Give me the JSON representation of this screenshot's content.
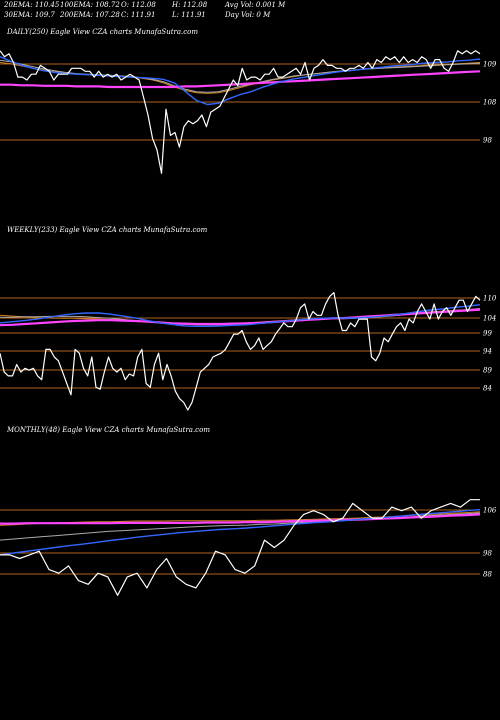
{
  "header": {
    "ema20": "20EMA: 110.45",
    "ema100": "100EMA: 108.72",
    "open": "O: 112.08",
    "high": "H: 112.08",
    "avg_vol": "Avg Vol: 0.001 M",
    "ema30": "30EMA: 109.7",
    "ema200": "200EMA: 107.28",
    "close": "C: 111.91",
    "low": "L: 111.91",
    "day_vol": "Day Vol: 0  M"
  },
  "colors": {
    "background": "#000000",
    "price": "#ffffff",
    "ema_blue": "#3366ff",
    "ema_pink": "#ff44ff",
    "ema_orange": "#d08020",
    "ema_gray": "#aaaaaa",
    "gridline": "#b06420"
  },
  "chart_data": [
    {
      "type": "line",
      "title": "DAILY(250) Eagle  View  CZA charts MunafaSutra.com",
      "ticks": [
        "109",
        "108",
        "98"
      ],
      "price": [
        113,
        112,
        112.5,
        111,
        108.5,
        108.5,
        108,
        109,
        109,
        110.5,
        110,
        109.5,
        108,
        109,
        109,
        109,
        110,
        110,
        110,
        109.5,
        109.5,
        108.5,
        109.5,
        108.5,
        109,
        108.5,
        109,
        108,
        108.5,
        109,
        108.5,
        108,
        105,
        102,
        98,
        96,
        92,
        103,
        98.5,
        99,
        96.5,
        100,
        101,
        100.5,
        101,
        102,
        100,
        102.5,
        103,
        103.5,
        105,
        106.5,
        108,
        107,
        110,
        108,
        108.5,
        108.5,
        108,
        109,
        109,
        110,
        108.5,
        108.5,
        109,
        109.5,
        110,
        109,
        111,
        108,
        110,
        110.5,
        111.5,
        110.5,
        110.5,
        110,
        110,
        109.5,
        110,
        110,
        110.5,
        110,
        111,
        110,
        111.5,
        111,
        112,
        111.5,
        112,
        111,
        112,
        111,
        111.5,
        111,
        112,
        111.5,
        110,
        111.5,
        111.5,
        110,
        109.5,
        111,
        113,
        112.5,
        113,
        112.5,
        113,
        112.5
      ],
      "ema_blue": [
        112,
        111.2,
        110.5,
        110,
        109.6,
        109.3,
        109.1,
        109,
        108.9,
        108.8,
        108.7,
        108.6,
        108.5,
        108.4,
        108.3,
        108.1,
        107.5,
        106,
        104.5,
        103.8,
        104,
        104.8,
        105.5,
        106,
        106.7,
        107.3,
        107.8,
        108.2,
        108.5,
        108.8,
        109.1,
        109.4,
        109.6,
        109.8,
        110,
        110.2,
        110.4,
        110.5,
        110.7,
        110.9,
        111,
        111.1,
        111.3,
        111.4,
        111.6
      ],
      "ema_orange": [
        111,
        110.8,
        110.4,
        110,
        109.7,
        109.4,
        109.2,
        109,
        108.9,
        108.8,
        108.7,
        108.6,
        108.5,
        108.3,
        108,
        107.5,
        106.8,
        106.2,
        105.8,
        105.7,
        105.8,
        106.2,
        106.7,
        107.2,
        107.6,
        108,
        108.3,
        108.6,
        108.9,
        109.1,
        109.3,
        109.5,
        109.7,
        109.8,
        110,
        110.1,
        110.2,
        110.3,
        110.4,
        110.5,
        110.6,
        110.7,
        110.8,
        110.9,
        111
      ],
      "ema_gray": [
        111.4,
        111.1,
        110.7,
        110.3,
        109.9,
        109.6,
        109.3,
        109.1,
        109,
        108.9,
        108.8,
        108.7,
        108.6,
        108.4,
        108.1,
        107.7,
        107,
        106.4,
        106,
        105.9,
        106,
        106.4,
        106.9,
        107.3,
        107.7,
        108.1,
        108.4,
        108.7,
        108.9,
        109.1,
        109.3,
        109.5,
        109.6,
        109.8,
        109.9,
        110,
        110.1,
        110.2,
        110.3,
        110.4,
        110.5,
        110.6,
        110.7,
        110.8,
        110.9
      ],
      "ema_pink": [
        107.2,
        107.2,
        107.1,
        107.1,
        107,
        107,
        107,
        106.9,
        106.9,
        106.9,
        106.8,
        106.8,
        106.8,
        106.8,
        106.8,
        106.8,
        106.8,
        106.9,
        106.9,
        107,
        107.1,
        107.2,
        107.3,
        107.4,
        107.5,
        107.6,
        107.7,
        107.8,
        107.9,
        108,
        108.1,
        108.2,
        108.3,
        108.4,
        108.5,
        108.6,
        108.7,
        108.8,
        108.9,
        109,
        109.1,
        109.2,
        109.3,
        109.4,
        109.5
      ]
    },
    {
      "type": "line",
      "title": "WEEKLY(233) Eagle  View  CZA charts MunafaSutra.com",
      "ticks": [
        "110",
        "104",
        "99",
        "94",
        "89",
        "84"
      ],
      "price": [
        95,
        90,
        89,
        89,
        92,
        90,
        91,
        90.5,
        91,
        89,
        88,
        96,
        96,
        94,
        93,
        90,
        87,
        84,
        96,
        95,
        91,
        89,
        94,
        86,
        85.5,
        90,
        94,
        91,
        90,
        91,
        88,
        89.5,
        89,
        94,
        96,
        87,
        86,
        92,
        95,
        88,
        92,
        89,
        85,
        83,
        82,
        80,
        82,
        86,
        90,
        91,
        92,
        94,
        94.5,
        95,
        96,
        98,
        100,
        100,
        101,
        98,
        96,
        97,
        99,
        96,
        97,
        98,
        100,
        101.5,
        103,
        102,
        102,
        104,
        107,
        108,
        104,
        106,
        105,
        105,
        108,
        110,
        111,
        105,
        101,
        101,
        103,
        102,
        104,
        104,
        104,
        94,
        93,
        95,
        99,
        98,
        100,
        102,
        103,
        101,
        104,
        103,
        106,
        108,
        106,
        104,
        108,
        104,
        106,
        107,
        105,
        107,
        109,
        109,
        106,
        108,
        110,
        109
      ],
      "ema_blue": [
        103,
        103.3,
        103.6,
        104,
        104.5,
        105,
        105.4,
        105.6,
        105.6,
        105.3,
        104.8,
        104.3,
        103.6,
        103,
        102.6,
        102.2,
        102.1,
        102.1,
        102.2,
        102.4,
        102.5,
        102.8,
        103.1,
        103.4,
        103.7,
        104,
        104.2,
        104.3,
        104.3,
        104.3,
        104.5,
        104.7,
        105.1,
        105.5,
        106,
        106.4,
        106.7,
        107.1,
        107.4,
        107.8
      ],
      "ema_orange": [
        105,
        104.8,
        104.6,
        104.4,
        104.3,
        104.2,
        104.2,
        104.1,
        104,
        103.9,
        103.8,
        103.6,
        103.4,
        103.2,
        103,
        102.9,
        102.8,
        102.8,
        102.8,
        102.9,
        103,
        103.2,
        103.4,
        103.6,
        103.8,
        104,
        104.2,
        104.3,
        104.4,
        104.5,
        104.7,
        104.9,
        105.2,
        105.4,
        105.7,
        105.9,
        106.1,
        106.3,
        106.5,
        106.7
      ],
      "ema_gray": [
        104.5,
        104.5,
        104.6,
        104.6,
        104.7,
        104.7,
        104.7,
        104.6,
        104.4,
        104.2,
        103.9,
        103.6,
        103.3,
        103,
        102.8,
        102.6,
        102.5,
        102.5,
        102.5,
        102.7,
        102.8,
        103,
        103.2,
        103.4,
        103.6,
        103.8,
        104,
        104.1,
        104.1,
        104.2,
        104.4,
        104.6,
        104.9,
        105.2,
        105.5,
        105.8,
        106,
        106.3,
        106.5,
        106.8
      ],
      "ema_pink": [
        102.4,
        102.5,
        102.7,
        102.9,
        103.1,
        103.3,
        103.5,
        103.6,
        103.7,
        103.7,
        103.6,
        103.5,
        103.3,
        103.1,
        102.9,
        102.8,
        102.7,
        102.7,
        102.7,
        102.8,
        102.9,
        103,
        103.2,
        103.4,
        103.6,
        103.8,
        104,
        104.2,
        104.3,
        104.5,
        104.7,
        104.9,
        105.1,
        105.3,
        105.5,
        105.7,
        105.9,
        106.1,
        106.3,
        106.5
      ]
    },
    {
      "type": "line",
      "title": "MONTHLY(48) Eagle  View  CZA charts MunafaSutra.com",
      "ticks": [
        "106",
        "98",
        "88"
      ],
      "price": [
        95,
        95,
        94,
        95,
        96,
        91,
        90,
        92,
        88,
        87,
        90,
        89,
        84,
        89,
        90,
        86,
        91,
        94,
        89,
        87,
        86,
        90,
        96,
        95,
        91,
        90,
        92,
        99,
        97,
        99,
        103,
        106,
        107,
        106,
        104,
        105,
        109,
        107,
        105,
        105,
        108,
        107,
        108,
        105,
        107,
        108,
        109,
        108,
        110,
        110
      ],
      "ema_blue": [
        95,
        95.5,
        96,
        96.5,
        97,
        97.5,
        97.9,
        98.4,
        98.9,
        99.3,
        99.8,
        100.2,
        100.6,
        101,
        101.3,
        101.6,
        101.9,
        102.1,
        102.3,
        102.6,
        102.9,
        103.2,
        103.5,
        103.8,
        104,
        104.3,
        104.6,
        104.9,
        105.2,
        105.5,
        105.8,
        106.1,
        106.4,
        106.7,
        107,
        107.3
      ],
      "ema_orange": [
        103,
        103.2,
        103.4,
        103.6,
        103.7,
        103.8,
        103.9,
        104,
        104,
        104.1,
        104.2,
        104.2,
        104.2,
        104.3,
        104.3,
        104.3,
        104.3,
        104.3,
        104.3,
        104.4,
        104.4,
        104.5,
        104.6,
        104.7,
        104.8,
        104.9,
        105,
        105.2,
        105.3,
        105.5,
        105.7,
        105.9,
        106.1,
        106.3,
        106.5,
        106.7
      ],
      "ema_gray": [
        99,
        99.3,
        99.6,
        99.9,
        100.2,
        100.5,
        100.8,
        101.1,
        101.4,
        101.6,
        101.8,
        102,
        102.2,
        102.4,
        102.6,
        102.8,
        102.9,
        103,
        103.1,
        103.3,
        103.4,
        103.6,
        103.8,
        104,
        104.1,
        104.3,
        104.5,
        104.7,
        104.9,
        105.1,
        105.3,
        105.6,
        105.8,
        106,
        106.2,
        106.4
      ],
      "ema_pink": [
        103.5,
        103.5,
        103.6,
        103.6,
        103.6,
        103.6,
        103.6,
        103.6,
        103.6,
        103.7,
        103.7,
        103.7,
        103.7,
        103.7,
        103.7,
        103.8,
        103.8,
        103.8,
        103.9,
        103.9,
        104,
        104.1,
        104.2,
        104.3,
        104.4,
        104.5,
        104.6,
        104.7,
        104.9,
        105,
        105.2,
        105.3,
        105.5,
        105.7,
        105.8,
        106
      ]
    }
  ]
}
